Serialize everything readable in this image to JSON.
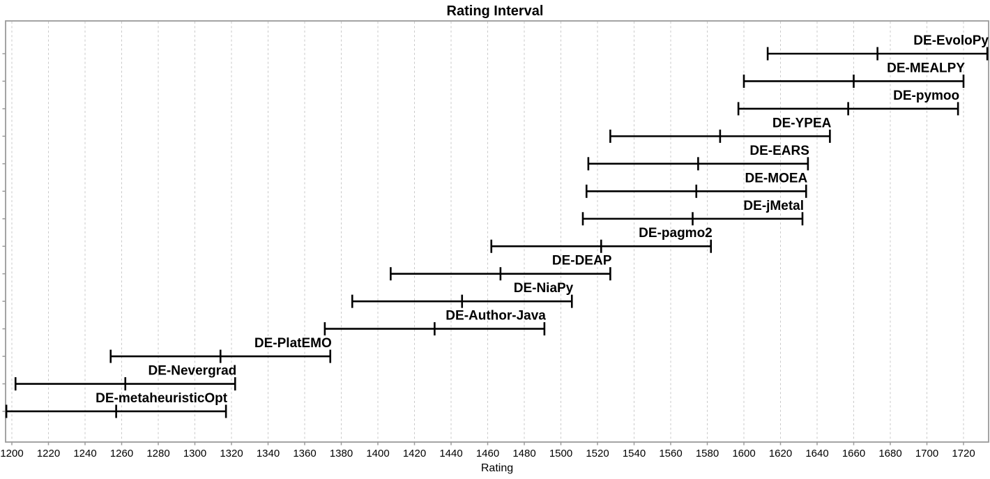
{
  "chart_data": {
    "type": "interval",
    "title": "Rating Interval",
    "xlabel": "Rating",
    "x_axis": {
      "tick_start": 1200,
      "tick_end": 1720,
      "tick_step": 20,
      "visible_min": 1196.5,
      "visible_max": 1734.5,
      "grid": "vertical-dashed"
    },
    "interval_half_width": 60,
    "series": [
      {
        "label": "DE-EvoloPy",
        "rating": 1673,
        "low": 1613,
        "high": 1733
      },
      {
        "label": "DE-MEALPY",
        "rating": 1660,
        "low": 1600,
        "high": 1720
      },
      {
        "label": "DE-pymoo",
        "rating": 1657,
        "low": 1597,
        "high": 1717
      },
      {
        "label": "DE-YPEA",
        "rating": 1587,
        "low": 1527,
        "high": 1647
      },
      {
        "label": "DE-EARS",
        "rating": 1575,
        "low": 1515,
        "high": 1635
      },
      {
        "label": "DE-MOEA",
        "rating": 1574,
        "low": 1514,
        "high": 1634
      },
      {
        "label": "DE-jMetal",
        "rating": 1572,
        "low": 1512,
        "high": 1632
      },
      {
        "label": "DE-pagmo2",
        "rating": 1522,
        "low": 1462,
        "high": 1582
      },
      {
        "label": "DE-DEAP",
        "rating": 1467,
        "low": 1407,
        "high": 1527
      },
      {
        "label": "DE-NiaPy",
        "rating": 1446,
        "low": 1386,
        "high": 1506
      },
      {
        "label": "DE-Author-Java",
        "rating": 1431,
        "low": 1371,
        "high": 1491
      },
      {
        "label": "DE-PlatEMO",
        "rating": 1314,
        "low": 1254,
        "high": 1374
      },
      {
        "label": "DE-Nevergrad",
        "rating": 1262,
        "low": 1202,
        "high": 1322
      },
      {
        "label": "DE-metaheuristicOpt",
        "rating": 1257,
        "low": 1197,
        "high": 1317
      }
    ],
    "colors": {
      "interval": "#000000",
      "grid": "#c9c9c9",
      "border": "#9a9a9a",
      "text": "#000000",
      "background": "#ffffff"
    }
  }
}
